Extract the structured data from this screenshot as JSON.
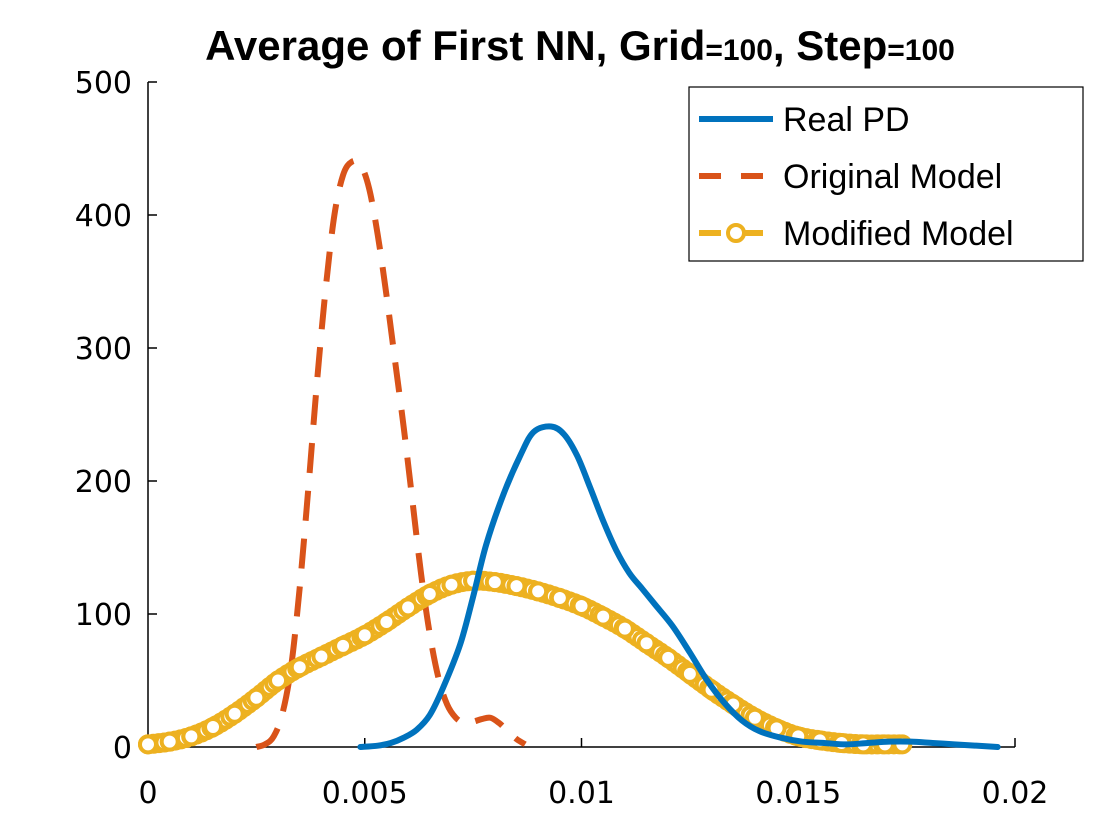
{
  "chart_data": {
    "type": "line",
    "title_parts": [
      "Average of First NN, Grid",
      "=100",
      ", Step",
      "=100"
    ],
    "xlabel": "",
    "ylabel": "",
    "xlim": [
      0,
      0.02
    ],
    "ylim": [
      0,
      500
    ],
    "x_ticks": [
      {
        "value": 0,
        "label": "0"
      },
      {
        "value": 0.005,
        "label": "0.005"
      },
      {
        "value": 0.01,
        "label": "0.01"
      },
      {
        "value": 0.015,
        "label": "0.015"
      },
      {
        "value": 0.02,
        "label": "0.02"
      }
    ],
    "y_ticks": [
      {
        "value": 0,
        "label": "0"
      },
      {
        "value": 100,
        "label": "100"
      },
      {
        "value": 200,
        "label": "200"
      },
      {
        "value": 300,
        "label": "300"
      },
      {
        "value": 400,
        "label": "400"
      },
      {
        "value": 500,
        "label": "500"
      }
    ],
    "grid": false,
    "legend_position": "top-right",
    "series": [
      {
        "name": "Real PD",
        "color": "#0072BD",
        "style": "solid",
        "x": [
          0.0049,
          0.0053,
          0.0056,
          0.0059,
          0.0062,
          0.0065,
          0.0068,
          0.0072,
          0.0075,
          0.0078,
          0.0082,
          0.0086,
          0.0089,
          0.0093,
          0.0096,
          0.0099,
          0.0102,
          0.0105,
          0.0108,
          0.0111,
          0.0114,
          0.0117,
          0.0121,
          0.0125,
          0.0129,
          0.0133,
          0.0137,
          0.0141,
          0.0146,
          0.0151,
          0.0156,
          0.0161,
          0.0166,
          0.0171,
          0.0176,
          0.0181,
          0.0186,
          0.0191,
          0.0196
        ],
        "y": [
          0,
          1,
          3,
          7,
          13,
          24,
          44,
          77,
          113,
          152,
          190,
          220,
          237,
          241,
          235,
          219,
          195,
          170,
          148,
          131,
          119,
          107,
          91,
          71,
          50,
          33,
          20,
          12,
          7,
          4,
          3,
          2,
          3,
          4,
          4,
          3,
          2,
          1,
          0
        ]
      },
      {
        "name": "Original Model",
        "color": "#D95319",
        "style": "dashed",
        "x": [
          0.0025,
          0.0027,
          0.0029,
          0.0031,
          0.0033,
          0.0035,
          0.0037,
          0.0039,
          0.0041,
          0.0043,
          0.0045,
          0.0047,
          0.0049,
          0.0051,
          0.0053,
          0.0055,
          0.0057,
          0.0059,
          0.0061,
          0.0063,
          0.0065,
          0.0067,
          0.0069,
          0.0071,
          0.0073,
          0.0075,
          0.0077,
          0.0079,
          0.0081,
          0.0083,
          0.0085,
          0.0087
        ],
        "y": [
          0,
          2,
          8,
          25,
          60,
          120,
          195,
          275,
          345,
          400,
          430,
          440,
          438,
          420,
          385,
          340,
          290,
          240,
          185,
          130,
          85,
          52,
          32,
          22,
          18,
          19,
          21,
          22,
          18,
          12,
          6,
          2
        ]
      },
      {
        "name": "Modified Model",
        "color": "#EDB120",
        "style": "dashed-circle",
        "x": [
          0.0,
          0.0005,
          0.001,
          0.0015,
          0.002,
          0.0025,
          0.003,
          0.0035,
          0.004,
          0.0045,
          0.005,
          0.0055,
          0.006,
          0.0065,
          0.007,
          0.0075,
          0.008,
          0.0085,
          0.009,
          0.0095,
          0.01,
          0.0105,
          0.011,
          0.0115,
          0.012,
          0.0125,
          0.013,
          0.0135,
          0.014,
          0.0145,
          0.015,
          0.0155,
          0.016,
          0.0165,
          0.017,
          0.0174
        ],
        "y": [
          2,
          4,
          8,
          15,
          25,
          37,
          50,
          60,
          68,
          76,
          84,
          94,
          105,
          115,
          122,
          125,
          124,
          121,
          117,
          112,
          106,
          98,
          89,
          78,
          67,
          55,
          43,
          32,
          22,
          14,
          8,
          5,
          3,
          2,
          2,
          2
        ]
      }
    ]
  }
}
